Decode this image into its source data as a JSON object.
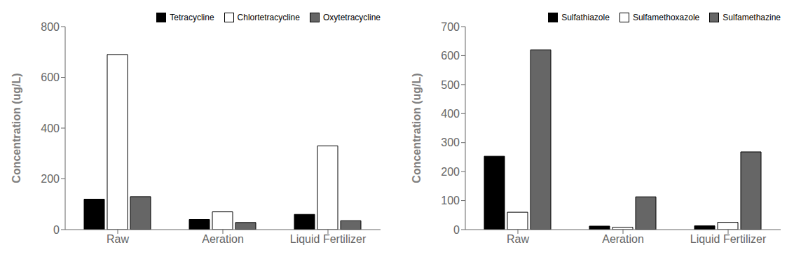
{
  "chart_data": [
    {
      "type": "bar",
      "categories": [
        "Raw",
        "Aeration",
        "Liquid Fertilizer"
      ],
      "series": [
        {
          "name": "Tetracycline",
          "color": "#000000",
          "values": [
            120,
            40,
            60
          ]
        },
        {
          "name": "Chlortetracycline",
          "color": "#ffffff",
          "values": [
            690,
            70,
            330
          ]
        },
        {
          "name": "Oxytetracycline",
          "color": "#666666",
          "values": [
            130,
            28,
            35
          ]
        }
      ],
      "y_label": "Concentration (ug/L)",
      "ylim": [
        0,
        800
      ],
      "yticks": [
        0,
        200,
        400,
        600,
        800
      ],
      "legend": "upper right",
      "grid": false
    },
    {
      "type": "bar",
      "categories": [
        "Raw",
        "Aeration",
        "Liquid Fertilizer"
      ],
      "series": [
        {
          "name": "Sulfathiazole",
          "color": "#000000",
          "values": [
            253,
            12,
            13
          ]
        },
        {
          "name": "Sulfamethoxazole",
          "color": "#ffffff",
          "values": [
            60,
            8,
            25
          ]
        },
        {
          "name": "Sulfamethazine",
          "color": "#666666",
          "values": [
            620,
            113,
            268
          ]
        }
      ],
      "y_label": "Concentration (ug/L)",
      "ylim": [
        0,
        700
      ],
      "yticks": [
        0,
        100,
        200,
        300,
        400,
        500,
        600,
        700
      ],
      "legend": "upper right",
      "grid": false
    }
  ]
}
